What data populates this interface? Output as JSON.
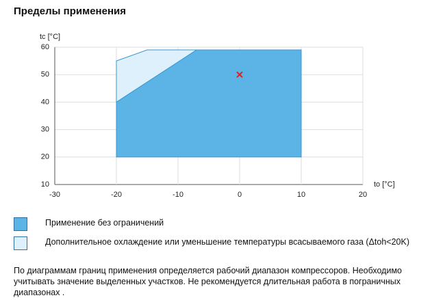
{
  "chart_data": {
    "type": "polygon",
    "title": "Пределы применения",
    "x_label": "to [°C]",
    "y_label": "tc [°C]",
    "xlim": [
      -30,
      20
    ],
    "ylim": [
      10,
      60
    ],
    "xticks": [
      -30,
      -20,
      -10,
      0,
      10,
      20
    ],
    "yticks": [
      10,
      20,
      30,
      40,
      50,
      60
    ],
    "grid": true,
    "series": [
      {
        "name": "Применение без ограничений",
        "color": "#5bb4e5",
        "x": [
          -20,
          -20,
          -7,
          10,
          10
        ],
        "values": [
          20,
          40,
          59,
          59,
          20
        ]
      },
      {
        "name": "Дополнительное охлаждение или уменьшение температуры всасываемого газа (Δtoh<20K)",
        "color": "#ddf0fb",
        "x": [
          -20,
          -20,
          -15,
          -7
        ],
        "values": [
          40,
          55,
          59,
          59
        ]
      }
    ],
    "markers": [
      {
        "x": 0,
        "y": 50,
        "color": "#e0201b"
      }
    ]
  },
  "footnote": "По диаграммам границ применения определяется рабочий диапазон компрессоров. Необходимо учитывать значение выделенных участков. Не рекомендуется длительная работа в пограничных диапазонах ."
}
